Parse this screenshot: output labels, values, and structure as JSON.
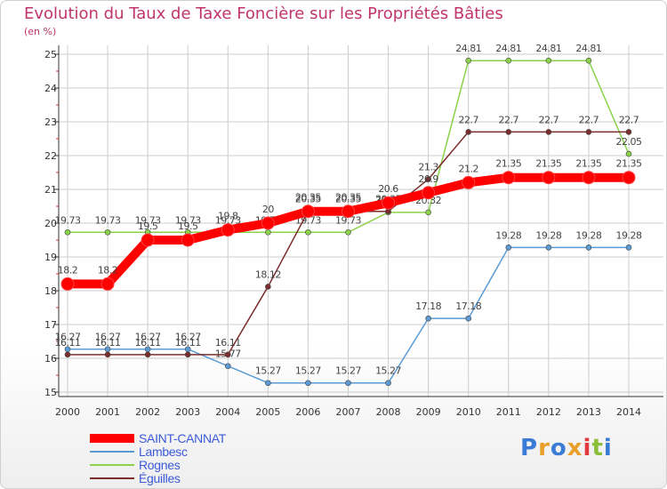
{
  "title": "Evolution du Taux de Taxe Foncière sur les Propriétés Bâties",
  "unit_label": "(en %)",
  "logo_text": "Proxiti",
  "chart_data": {
    "type": "line",
    "x": [
      "2000",
      "2001",
      "2002",
      "2003",
      "2004",
      "2005",
      "2006",
      "2007",
      "2008",
      "2009",
      "2010",
      "2011",
      "2012",
      "2013",
      "2014"
    ],
    "ylim": [
      15,
      25
    ],
    "yticks": [
      "15",
      "16",
      "17",
      "18",
      "19",
      "20",
      "21",
      "22",
      "23",
      "24",
      "25"
    ],
    "grid": true,
    "series": [
      {
        "name": "SAINT-CANNAT",
        "color": "#ff0000",
        "values": [
          18.2,
          18.2,
          19.5,
          19.5,
          19.8,
          20.0,
          20.35,
          20.35,
          20.6,
          20.9,
          21.2,
          21.35,
          21.35,
          21.35,
          21.35
        ],
        "labels": [
          "18.2",
          "18.2",
          "19.5",
          "19.5",
          "19.8",
          "20",
          "20.35",
          "20.35",
          "20.6",
          "20.9",
          "21.2",
          "21.35",
          "21.35",
          "21.35",
          "21.35"
        ]
      },
      {
        "name": "Lambesc",
        "color": "#5b9bd5",
        "values": [
          16.27,
          16.27,
          16.27,
          16.27,
          15.77,
          15.27,
          15.27,
          15.27,
          15.27,
          17.18,
          17.18,
          19.28,
          19.28,
          19.28,
          19.28
        ],
        "labels": [
          "16.27",
          "16.27",
          "16.27",
          "16.27",
          "15.77",
          "15.27",
          "15.27",
          "15.27",
          "15.27",
          "17.18",
          "17.18",
          "19.28",
          "19.28",
          "19.28",
          "19.28"
        ]
      },
      {
        "name": "Rognes",
        "color": "#8bd24a",
        "values": [
          19.73,
          19.73,
          19.73,
          19.73,
          19.73,
          19.73,
          19.73,
          19.73,
          20.32,
          20.32,
          24.81,
          24.81,
          24.81,
          24.81,
          22.05
        ],
        "labels": [
          "19.73",
          "19.73",
          "19.73",
          "19.73",
          "19.73",
          "19.73",
          "19.73",
          "19.73",
          "20.32",
          "20.32",
          "24.81",
          "24.81",
          "24.81",
          "24.81",
          "22.05"
        ]
      },
      {
        "name": "Éguilles",
        "color": "#7b2d2d",
        "values": [
          16.11,
          16.11,
          16.11,
          16.11,
          16.11,
          18.12,
          20.35,
          20.35,
          20.35,
          21.3,
          22.7,
          22.7,
          22.7,
          22.7,
          22.7
        ],
        "labels": [
          "16.11",
          "16.11",
          "16.11",
          "16.11",
          "16.11",
          "18.12",
          "20.35",
          "20.35",
          "20.35",
          "21.3",
          "22.7",
          "22.7",
          "22.7",
          "22.7",
          "22.7"
        ]
      }
    ]
  }
}
